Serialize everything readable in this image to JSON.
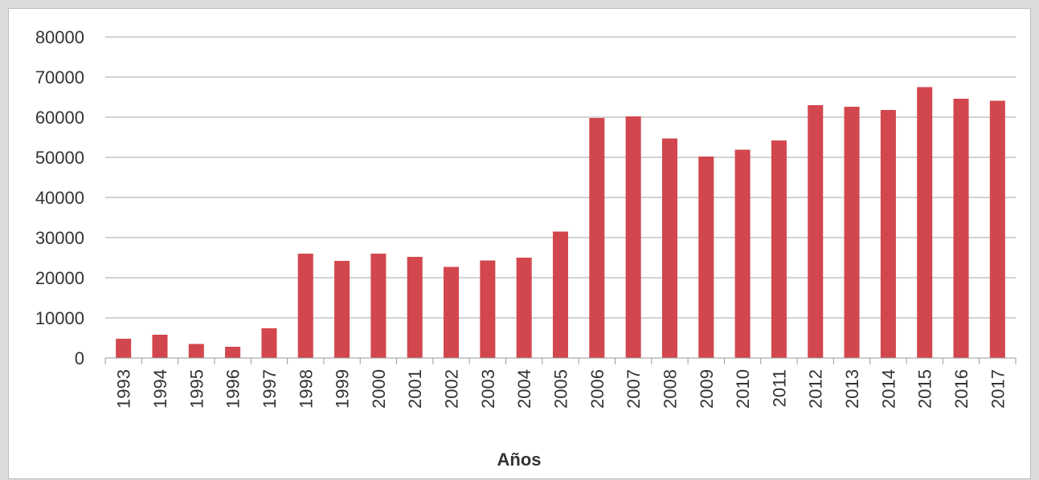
{
  "chart_data": {
    "type": "bar",
    "title": "",
    "xlabel": "Años",
    "ylabel": "",
    "ylim": [
      0,
      80000
    ],
    "yticks": [
      0,
      10000,
      20000,
      30000,
      40000,
      50000,
      60000,
      70000,
      80000
    ],
    "grid": true,
    "legend": "none",
    "bar_color": "#d2474d",
    "categories": [
      "1993",
      "1994",
      "1995",
      "1996",
      "1997",
      "1998",
      "1999",
      "2000",
      "2001",
      "2002",
      "2003",
      "2004",
      "2005",
      "2006",
      "2007",
      "2008",
      "2009",
      "2010",
      "2011",
      "2012",
      "2013",
      "2014",
      "2015",
      "2016",
      "2017"
    ],
    "values": [
      4800,
      5800,
      3500,
      2800,
      7400,
      26000,
      24200,
      26000,
      25200,
      22700,
      24300,
      25000,
      31500,
      59800,
      60200,
      54700,
      50200,
      51900,
      54200,
      63000,
      62600,
      61800,
      67500,
      64600,
      64100
    ]
  }
}
